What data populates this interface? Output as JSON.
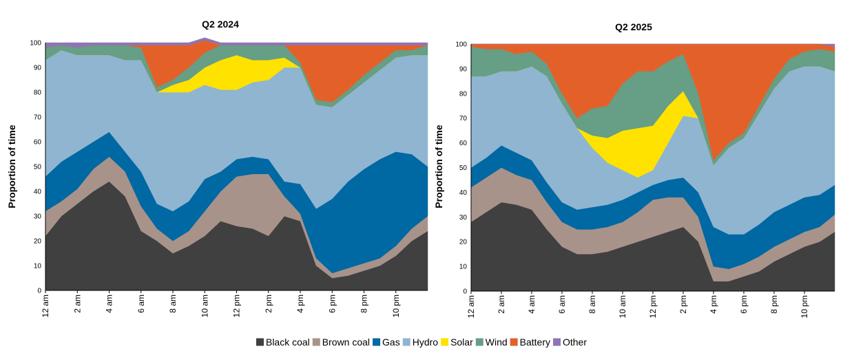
{
  "chart_data": [
    {
      "type": "area",
      "stacked": true,
      "title": "Q2 2024",
      "ylabel": "Proportion of time",
      "xlabel": "",
      "ylim": [
        0,
        100
      ],
      "yticks": [
        0,
        10,
        20,
        30,
        40,
        50,
        60,
        70,
        80,
        90,
        100
      ],
      "x_tick_labels": [
        "12 am",
        "2 am",
        "4 am",
        "6 am",
        "8 am",
        "10 am",
        "12 pm",
        "2 pm",
        "4 pm",
        "6 pm",
        "8 pm",
        "10 pm"
      ],
      "x_hours": [
        0,
        1,
        2,
        3,
        4,
        5,
        6,
        7,
        8,
        9,
        10,
        11,
        12,
        13,
        14,
        15,
        16,
        17,
        18,
        19,
        20,
        21,
        22,
        23,
        24
      ],
      "series": [
        {
          "name": "Black coal",
          "color": "#404040",
          "values": [
            22,
            30,
            35,
            40,
            44,
            38,
            24,
            20,
            15,
            18,
            22,
            28,
            26,
            25,
            22,
            30,
            28,
            10,
            5,
            6,
            8,
            10,
            14,
            20,
            24
          ]
        },
        {
          "name": "Brown coal",
          "color": "#a8938a",
          "values": [
            10,
            6,
            6,
            9,
            10,
            10,
            10,
            5,
            5,
            6,
            10,
            12,
            20,
            22,
            25,
            8,
            3,
            3,
            2,
            3,
            3,
            3,
            4,
            5,
            6
          ]
        },
        {
          "name": "Gas",
          "color": "#0068a3",
          "values": [
            14,
            16,
            15,
            11,
            10,
            8,
            14,
            10,
            12,
            12,
            13,
            8,
            7,
            7,
            6,
            6,
            12,
            20,
            30,
            35,
            38,
            40,
            38,
            30,
            20
          ]
        },
        {
          "name": "Hydro",
          "color": "#8fb5d1",
          "values": [
            47,
            45,
            39,
            35,
            31,
            37,
            45,
            45,
            48,
            44,
            38,
            33,
            28,
            30,
            32,
            46,
            47,
            42,
            37,
            35,
            35,
            36,
            38,
            40,
            45
          ]
        },
        {
          "name": "Solar",
          "color": "#ffe200",
          "values": [
            0,
            0,
            0,
            0,
            0,
            0,
            0,
            0,
            3,
            5,
            7,
            12,
            14,
            9,
            8,
            4,
            0,
            0,
            0,
            0,
            0,
            0,
            0,
            0,
            0
          ]
        },
        {
          "name": "Wind",
          "color": "#669e86",
          "values": [
            5,
            2,
            3,
            4,
            4,
            6,
            5,
            2,
            2,
            5,
            6,
            6,
            4,
            6,
            6,
            5,
            2,
            2,
            2,
            2,
            3,
            3,
            3,
            2,
            4
          ]
        },
        {
          "name": "Battery",
          "color": "#e36129",
          "values": [
            0,
            0,
            0,
            0,
            0,
            0,
            1,
            17,
            14,
            9,
            5,
            0,
            0,
            0,
            0,
            0,
            7,
            22,
            23,
            18,
            12,
            7,
            2,
            2,
            0
          ]
        },
        {
          "name": "Other",
          "color": "#8e75b5",
          "values": [
            2,
            1,
            2,
            1,
            1,
            1,
            1,
            1,
            1,
            1,
            1,
            1,
            1,
            1,
            1,
            1,
            1,
            1,
            1,
            1,
            1,
            1,
            1,
            1,
            1
          ]
        }
      ]
    },
    {
      "type": "area",
      "stacked": true,
      "title": "Q2 2025",
      "ylabel": "Proportion of time",
      "xlabel": "",
      "ylim": [
        0,
        100
      ],
      "yticks": [
        0,
        10,
        20,
        30,
        40,
        50,
        60,
        70,
        80,
        90,
        100
      ],
      "x_tick_labels": [
        "12 am",
        "2 am",
        "4 am",
        "6 am",
        "8 am",
        "10 am",
        "12 pm",
        "2 pm",
        "4 pm",
        "6 pm",
        "8 pm",
        "10 pm"
      ],
      "x_hours": [
        0,
        1,
        2,
        3,
        4,
        5,
        6,
        7,
        8,
        9,
        10,
        11,
        12,
        13,
        14,
        15,
        16,
        17,
        18,
        19,
        20,
        21,
        22,
        23,
        24
      ],
      "series": [
        {
          "name": "Black coal",
          "color": "#404040",
          "values": [
            28,
            32,
            36,
            35,
            33,
            25,
            18,
            15,
            15,
            16,
            18,
            20,
            22,
            24,
            26,
            20,
            4,
            4,
            6,
            8,
            12,
            15,
            18,
            20,
            24
          ]
        },
        {
          "name": "Brown coal",
          "color": "#a8938a",
          "values": [
            14,
            14,
            14,
            12,
            12,
            11,
            10,
            10,
            10,
            10,
            10,
            12,
            15,
            14,
            12,
            10,
            6,
            5,
            5,
            6,
            6,
            6,
            6,
            6,
            7
          ]
        },
        {
          "name": "Gas",
          "color": "#0068a3",
          "values": [
            8,
            8,
            9,
            9,
            8,
            8,
            8,
            8,
            9,
            9,
            9,
            8,
            6,
            7,
            8,
            10,
            16,
            14,
            12,
            13,
            14,
            14,
            14,
            13,
            12
          ]
        },
        {
          "name": "Hydro",
          "color": "#8fb5d1",
          "values": [
            37,
            33,
            30,
            33,
            38,
            43,
            40,
            33,
            24,
            17,
            12,
            6,
            6,
            15,
            25,
            30,
            25,
            35,
            39,
            45,
            50,
            54,
            53,
            52,
            46
          ]
        },
        {
          "name": "Solar",
          "color": "#ffe200",
          "values": [
            0,
            0,
            0,
            0,
            0,
            0,
            0,
            0,
            5,
            10,
            16,
            20,
            18,
            15,
            10,
            0,
            0,
            0,
            0,
            0,
            0,
            0,
            0,
            0,
            0
          ]
        },
        {
          "name": "Wind",
          "color": "#669e86",
          "values": [
            12,
            11,
            9,
            7,
            6,
            5,
            4,
            4,
            11,
            13,
            19,
            23,
            22,
            18,
            15,
            10,
            2,
            2,
            2,
            3,
            4,
            5,
            6,
            7,
            8
          ]
        },
        {
          "name": "Battery",
          "color": "#e36129",
          "values": [
            1,
            2,
            2,
            4,
            3,
            8,
            20,
            30,
            26,
            25,
            16,
            11,
            11,
            7,
            4,
            20,
            47,
            40,
            36,
            25,
            14,
            6,
            3,
            2,
            2
          ]
        },
        {
          "name": "Other",
          "color": "#8e75b5",
          "values": [
            0,
            0,
            0,
            0,
            0,
            0,
            0,
            0,
            0,
            0,
            0,
            0,
            0,
            0,
            0,
            0,
            0,
            0,
            0,
            0,
            0,
            0,
            0,
            0,
            1
          ]
        }
      ]
    }
  ],
  "legend": {
    "placement": "bottom",
    "items": [
      {
        "label": "Black coal",
        "color": "#404040"
      },
      {
        "label": "Brown coal",
        "color": "#a8938a"
      },
      {
        "label": "Gas",
        "color": "#0068a3"
      },
      {
        "label": "Hydro",
        "color": "#8fb5d1"
      },
      {
        "label": "Solar",
        "color": "#ffe200"
      },
      {
        "label": "Wind",
        "color": "#669e86"
      },
      {
        "label": "Battery",
        "color": "#e36129"
      },
      {
        "label": "Other",
        "color": "#8e75b5"
      }
    ]
  }
}
